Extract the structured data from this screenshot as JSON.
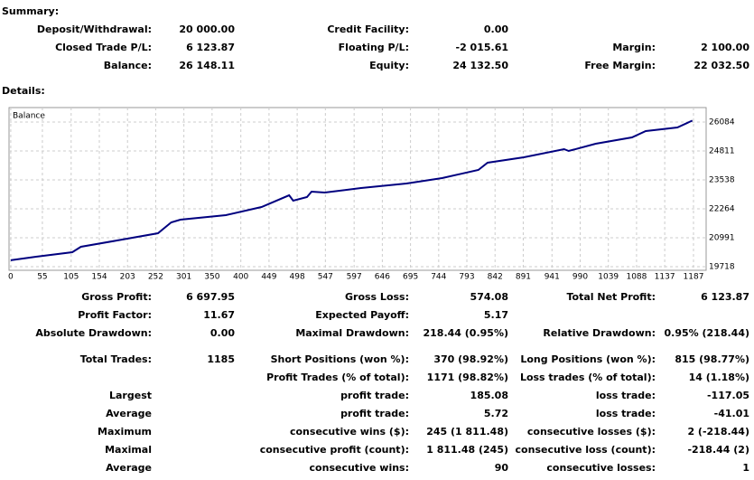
{
  "summary": {
    "title": "Summary:",
    "rows": [
      [
        "Deposit/Withdrawal:",
        "20 000.00",
        "Credit Facility:",
        "0.00",
        null,
        null
      ],
      [
        "Closed Trade P/L:",
        "6 123.87",
        "Floating P/L:",
        "-2 015.61",
        "Margin:",
        "2 100.00"
      ],
      [
        "Balance:",
        "26 148.11",
        "Equity:",
        "24 132.50",
        "Free Margin:",
        "22 032.50"
      ]
    ]
  },
  "details": {
    "title": "Details:",
    "rows": [
      [
        "Gross Profit:",
        "6 697.95",
        "Gross Loss:",
        "574.08",
        "Total Net Profit:",
        "6 123.87"
      ],
      [
        "Profit Factor:",
        "11.67",
        "Expected Payoff:",
        "5.17",
        null,
        null
      ],
      [
        "Absolute Drawdown:",
        "0.00",
        "Maximal Drawdown:",
        "218.44 (0.95%)",
        "Relative Drawdown:",
        "0.95% (218.44)"
      ],
      [
        "Total Trades:",
        "1185",
        "Short Positions (won %):",
        "370 (98.92%)",
        "Long Positions (won %):",
        "815 (98.77%)"
      ],
      [
        null,
        null,
        "Profit Trades (% of total):",
        "1171 (98.82%)",
        "Loss trades (% of total):",
        "14 (1.18%)"
      ],
      [
        "Largest",
        null,
        "profit trade:",
        "185.08",
        "loss trade:",
        "-117.05"
      ],
      [
        "Average",
        null,
        "profit trade:",
        "5.72",
        "loss trade:",
        "-41.01"
      ],
      [
        "Maximum",
        null,
        "consecutive wins ($):",
        "245 (1 811.48)",
        "consecutive losses ($):",
        "2 (-218.44)"
      ],
      [
        "Maximal",
        null,
        "consecutive profit (count):",
        "1 811.48 (245)",
        "consecutive loss (count):",
        "-218.44 (2)"
      ],
      [
        "Average",
        null,
        "consecutive wins:",
        "90",
        "consecutive losses:",
        "1"
      ]
    ]
  },
  "chart_data": {
    "type": "line",
    "title": "Balance",
    "color": "#00007f",
    "grid": true,
    "x": [
      0,
      44,
      107,
      122,
      185,
      256,
      279,
      295,
      374,
      436,
      484,
      491,
      515,
      523,
      546,
      609,
      688,
      750,
      813,
      829,
      892,
      962,
      970,
      1017,
      1080,
      1104,
      1159,
      1185
    ],
    "values": [
      20000,
      20156,
      20355,
      20593,
      20872,
      21190,
      21667,
      21787,
      21985,
      22344,
      22860,
      22622,
      22781,
      23020,
      22980,
      23179,
      23378,
      23617,
      23975,
      24293,
      24532,
      24890,
      24810,
      25128,
      25407,
      25685,
      25844,
      26148
    ],
    "xlim": [
      -3,
      1209
    ],
    "ylim": [
      19559,
      26720
    ],
    "xticks": [
      0,
      55,
      105,
      154,
      203,
      252,
      301,
      350,
      400,
      449,
      498,
      547,
      597,
      646,
      695,
      744,
      793,
      842,
      891,
      941,
      990,
      1039,
      1088,
      1137,
      1187
    ],
    "yticks": [
      19718,
      20991,
      22264,
      23538,
      24811,
      26084
    ]
  }
}
